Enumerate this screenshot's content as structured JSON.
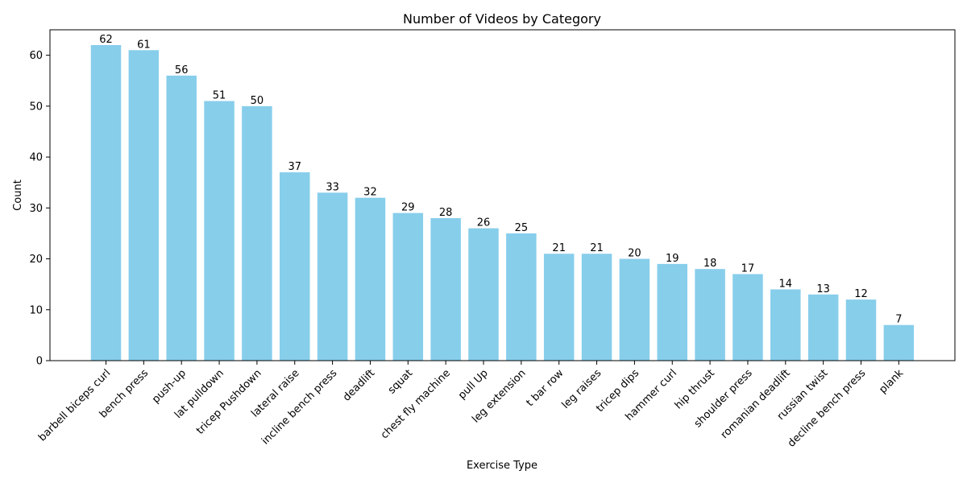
{
  "chart_data": {
    "type": "bar",
    "title": "Number of Videos by Category",
    "xlabel": "Exercise Type",
    "ylabel": "Count",
    "ylim": [
      0,
      65
    ],
    "yticks": [
      0,
      10,
      20,
      30,
      40,
      50,
      60
    ],
    "grid": false,
    "bar_color": "#87CEEB",
    "categories": [
      "barbell biceps curl",
      "bench press",
      "push-up",
      "lat pulldown",
      "tricep Pushdown",
      "lateral raise",
      "incline bench press",
      "deadlift",
      "squat",
      "chest fly machine",
      "pull Up",
      "leg extension",
      "t bar row",
      "leg raises",
      "tricep dips",
      "hammer curl",
      "hip thrust",
      "shoulder press",
      "romanian deadlift",
      "russian twist",
      "decline bench press",
      "plank"
    ],
    "values": [
      62,
      61,
      56,
      51,
      50,
      37,
      33,
      32,
      29,
      28,
      26,
      25,
      21,
      21,
      20,
      19,
      18,
      17,
      14,
      13,
      12,
      7
    ]
  }
}
